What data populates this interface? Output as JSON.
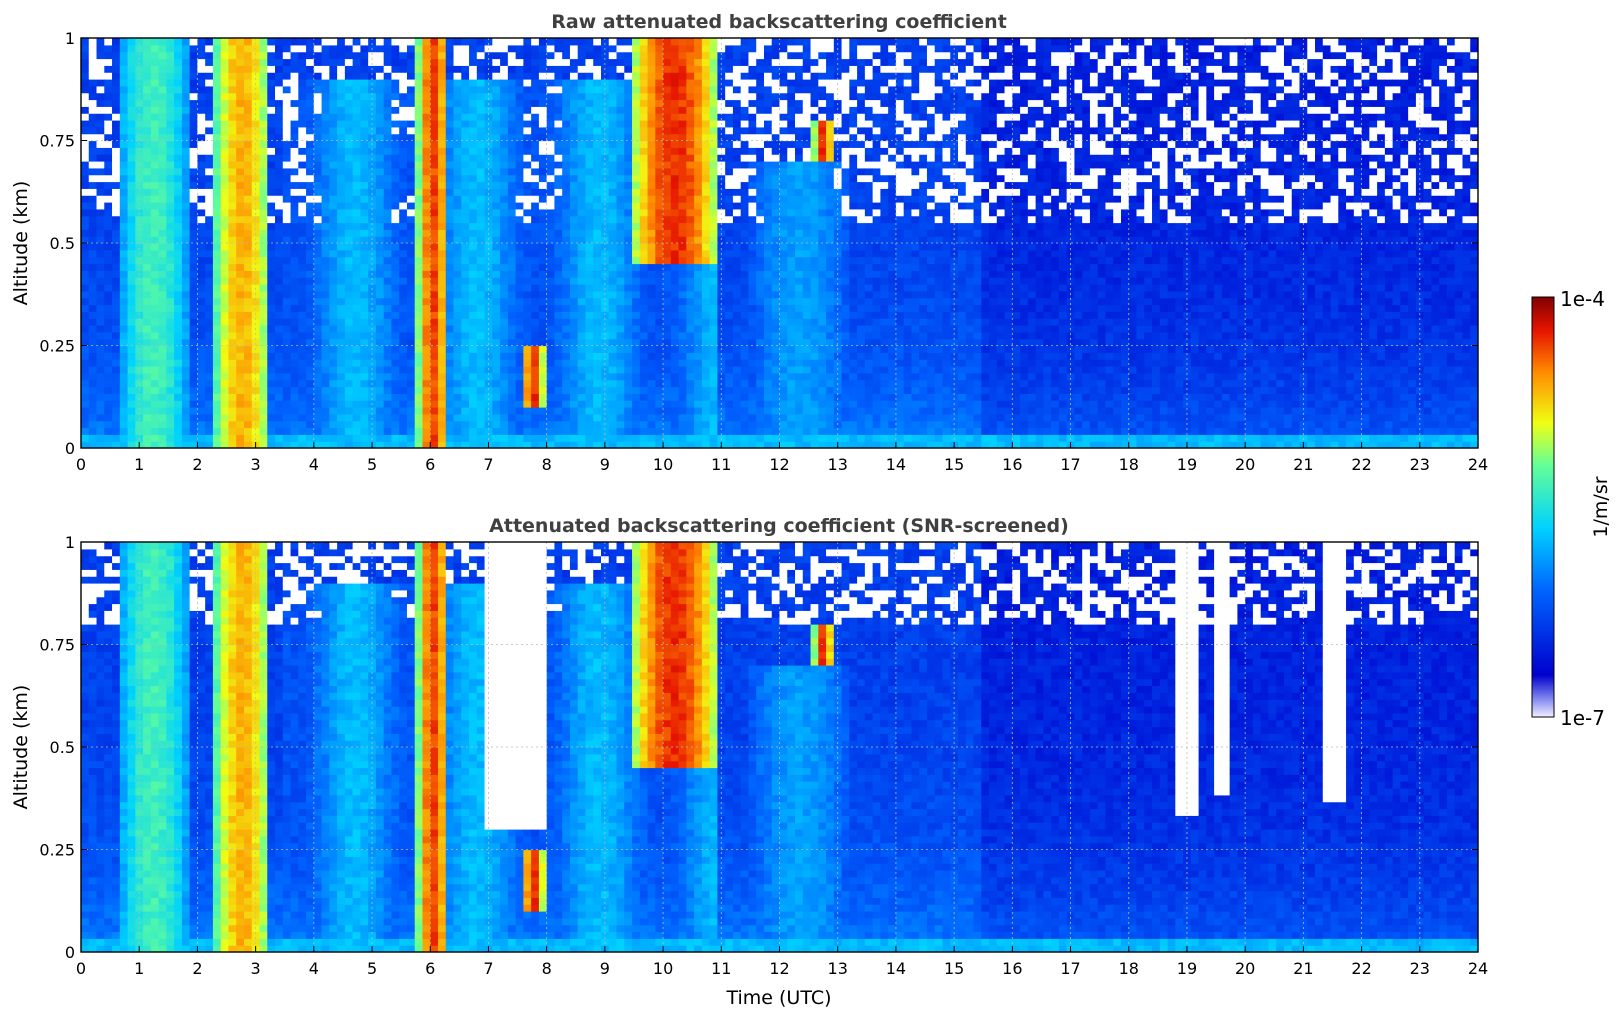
{
  "chart_data": [
    {
      "type": "heatmap",
      "title": "Raw attenuated backscattering coefficient",
      "xlabel": "",
      "ylabel": "Altitude (km)",
      "xlim": [
        0,
        24
      ],
      "ylim": [
        0,
        1
      ],
      "xticks": [
        0,
        1,
        2,
        3,
        4,
        5,
        6,
        7,
        8,
        9,
        10,
        11,
        12,
        13,
        14,
        15,
        16,
        17,
        18,
        19,
        20,
        21,
        22,
        23,
        24
      ],
      "yticks": [
        0,
        0.25,
        0.5,
        0.75,
        1
      ],
      "ytick_labels": [
        "0",
        "0.25",
        "0.5",
        "0.75",
        "1"
      ],
      "grid": true,
      "colorscale": "jet",
      "value_range": [
        "1e-7",
        "1e-4"
      ],
      "features": [
        {
          "kind": "precipitation",
          "t_start": 0.7,
          "t_end": 1.8,
          "alt_top": 1.0,
          "level": 0.55
        },
        {
          "kind": "precipitation",
          "t_start": 2.3,
          "t_end": 3.25,
          "alt_top": 1.0,
          "level": 0.78
        },
        {
          "kind": "cloud",
          "t_start": 5.8,
          "t_end": 6.3,
          "alt_bottom": 0.0,
          "alt_top": 1.0,
          "level": 0.88
        },
        {
          "kind": "cloud",
          "t_start": 7.6,
          "t_end": 7.95,
          "alt_bottom": 0.1,
          "alt_top": 0.25,
          "level": 0.9
        },
        {
          "kind": "cloud",
          "t_start": 9.5,
          "t_end": 10.9,
          "alt_bottom": 0.45,
          "alt_top": 1.0,
          "level": 0.9
        },
        {
          "kind": "cloud",
          "t_start": 12.6,
          "t_end": 12.9,
          "alt_bottom": 0.7,
          "alt_top": 0.8,
          "level": 0.9
        },
        {
          "kind": "aerosol",
          "t_start": 11.5,
          "t_end": 13.2,
          "alt_bottom": 0.0,
          "alt_top": 0.7,
          "level": 0.38
        }
      ]
    },
    {
      "type": "heatmap",
      "title": "Attenuated backscattering coefficient (SNR-screened)",
      "xlabel": "Time (UTC)",
      "ylabel": "Altitude (km)",
      "xlim": [
        0,
        24
      ],
      "ylim": [
        0,
        1
      ],
      "xticks": [
        0,
        1,
        2,
        3,
        4,
        5,
        6,
        7,
        8,
        9,
        10,
        11,
        12,
        13,
        14,
        15,
        16,
        17,
        18,
        19,
        20,
        21,
        22,
        23,
        24
      ],
      "yticks": [
        0,
        0.25,
        0.5,
        0.75,
        1
      ],
      "ytick_labels": [
        "0",
        "0.25",
        "0.5",
        "0.75",
        "1"
      ],
      "grid": true,
      "colorscale": "jet",
      "value_range": [
        "1e-7",
        "1e-4"
      ],
      "screened_regions": [
        {
          "t_start": 18.85,
          "t_end": 19.25,
          "alt_bottom": 0.33
        },
        {
          "t_start": 19.45,
          "t_end": 19.75,
          "alt_bottom": 0.38
        },
        {
          "t_start": 21.35,
          "t_end": 21.75,
          "alt_bottom": 0.37
        },
        {
          "t_start": 7.0,
          "t_end": 8.05,
          "alt_bottom": 0.3
        }
      ]
    }
  ],
  "colorbar": {
    "label": "1/m/sr",
    "max_label": "1e-4",
    "min_label": "1e-7"
  }
}
